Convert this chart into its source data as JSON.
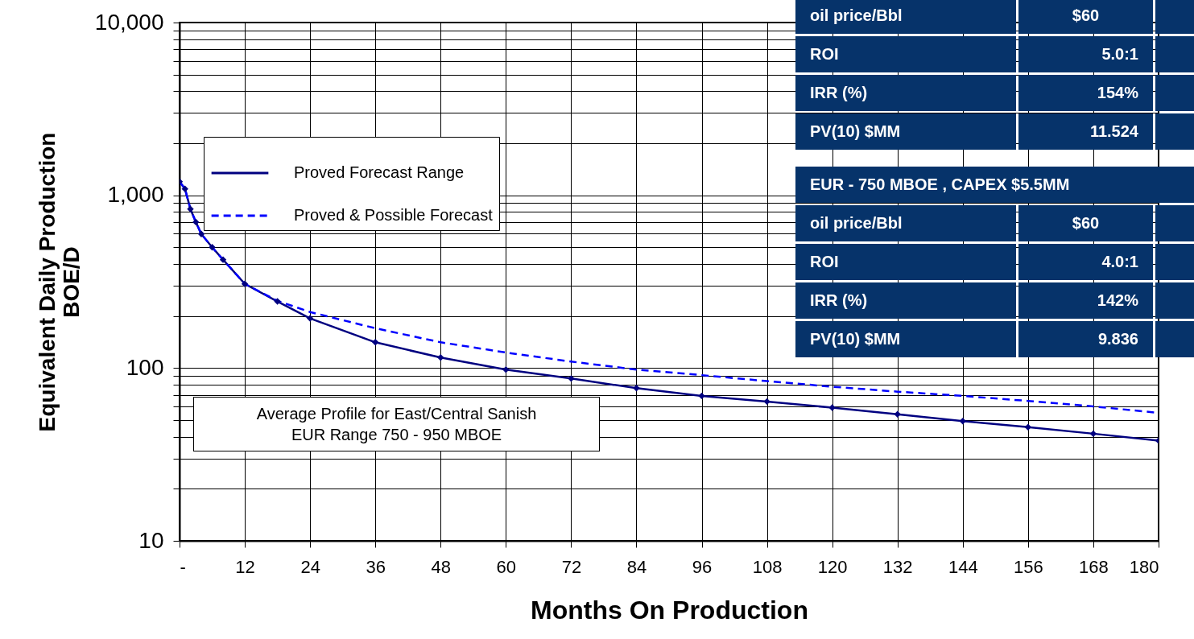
{
  "chart_data": {
    "type": "line",
    "xlabel": "Months On Production",
    "ylabel": "Equivalent Daily Production\nBOE/D",
    "xlim": [
      0,
      180
    ],
    "xticks": [
      {
        "value": 0,
        "label": "-"
      },
      12,
      24,
      36,
      48,
      60,
      72,
      84,
      96,
      108,
      120,
      132,
      144,
      156,
      168,
      180
    ],
    "ylim": [
      10,
      10000
    ],
    "log": true,
    "yticks": [
      10,
      {
        "value": 20,
        "label": null
      },
      {
        "value": 30,
        "label": null
      },
      {
        "value": 40,
        "label": null
      },
      {
        "value": 50,
        "label": null
      },
      {
        "value": 60,
        "label": null
      },
      {
        "value": 70,
        "label": null
      },
      {
        "value": 80,
        "label": null
      },
      {
        "value": 90,
        "label": null
      },
      100,
      {
        "value": 200,
        "label": null
      },
      {
        "value": 300,
        "label": null
      },
      {
        "value": 400,
        "label": null
      },
      {
        "value": 500,
        "label": null
      },
      {
        "value": 600,
        "label": null
      },
      {
        "value": 700,
        "label": null
      },
      {
        "value": 800,
        "label": null
      },
      {
        "value": 900,
        "label": null
      },
      {
        "value": 1000,
        "label": "1,000"
      },
      {
        "value": 2000,
        "label": null
      },
      {
        "value": 3000,
        "label": null
      },
      {
        "value": 4000,
        "label": null
      },
      {
        "value": 5000,
        "label": null
      },
      {
        "value": 6000,
        "label": null
      },
      {
        "value": 7000,
        "label": null
      },
      {
        "value": 8000,
        "label": null
      },
      {
        "value": 9000,
        "label": null
      },
      {
        "value": 10000,
        "label": "10,000"
      }
    ],
    "grid": true,
    "legend": "top left",
    "x": [
      0,
      1,
      2,
      3,
      4,
      6,
      8,
      12,
      18,
      24,
      36,
      48,
      60,
      72,
      84,
      96,
      108,
      120,
      132,
      144,
      156,
      168,
      180
    ],
    "series": [
      {
        "name": "Proved Forecast Range",
        "color": "#000080",
        "line_style": "solid",
        "marker": "diamond",
        "values": [
          1200,
          1090,
          833,
          700,
          597,
          500,
          424,
          307,
          243,
          194,
          141,
          115,
          98,
          87,
          76.5,
          69,
          64,
          59,
          54,
          49.3,
          45.5,
          41.7,
          38
        ]
      },
      {
        "name": "Proved & Possible Forecast",
        "color": "#0000ff",
        "line_style": "dashed",
        "marker": "none",
        "values": [
          1200,
          1090,
          833,
          700,
          597,
          500,
          424,
          307,
          245,
          211,
          170,
          141,
          123,
          109,
          98,
          91,
          84,
          78,
          73,
          69,
          64.5,
          60,
          55
        ]
      }
    ],
    "annotations": [
      "Average Profile for East/Central Sanish",
      "EUR Range 750 - 950 MBOE",
      "oil price/Bbl",
      "$60",
      "ROI",
      "5.0:1",
      "IRR (%)",
      "154%",
      "PV(10) $MM",
      "11.524",
      "EUR - 750 MBOE , CAPEX $5.5MM",
      "oil price/Bbl",
      "$60",
      "ROI",
      "4.0:1",
      "IRR (%)",
      "142%",
      "PV(10) $MM",
      "9.836"
    ]
  }
}
